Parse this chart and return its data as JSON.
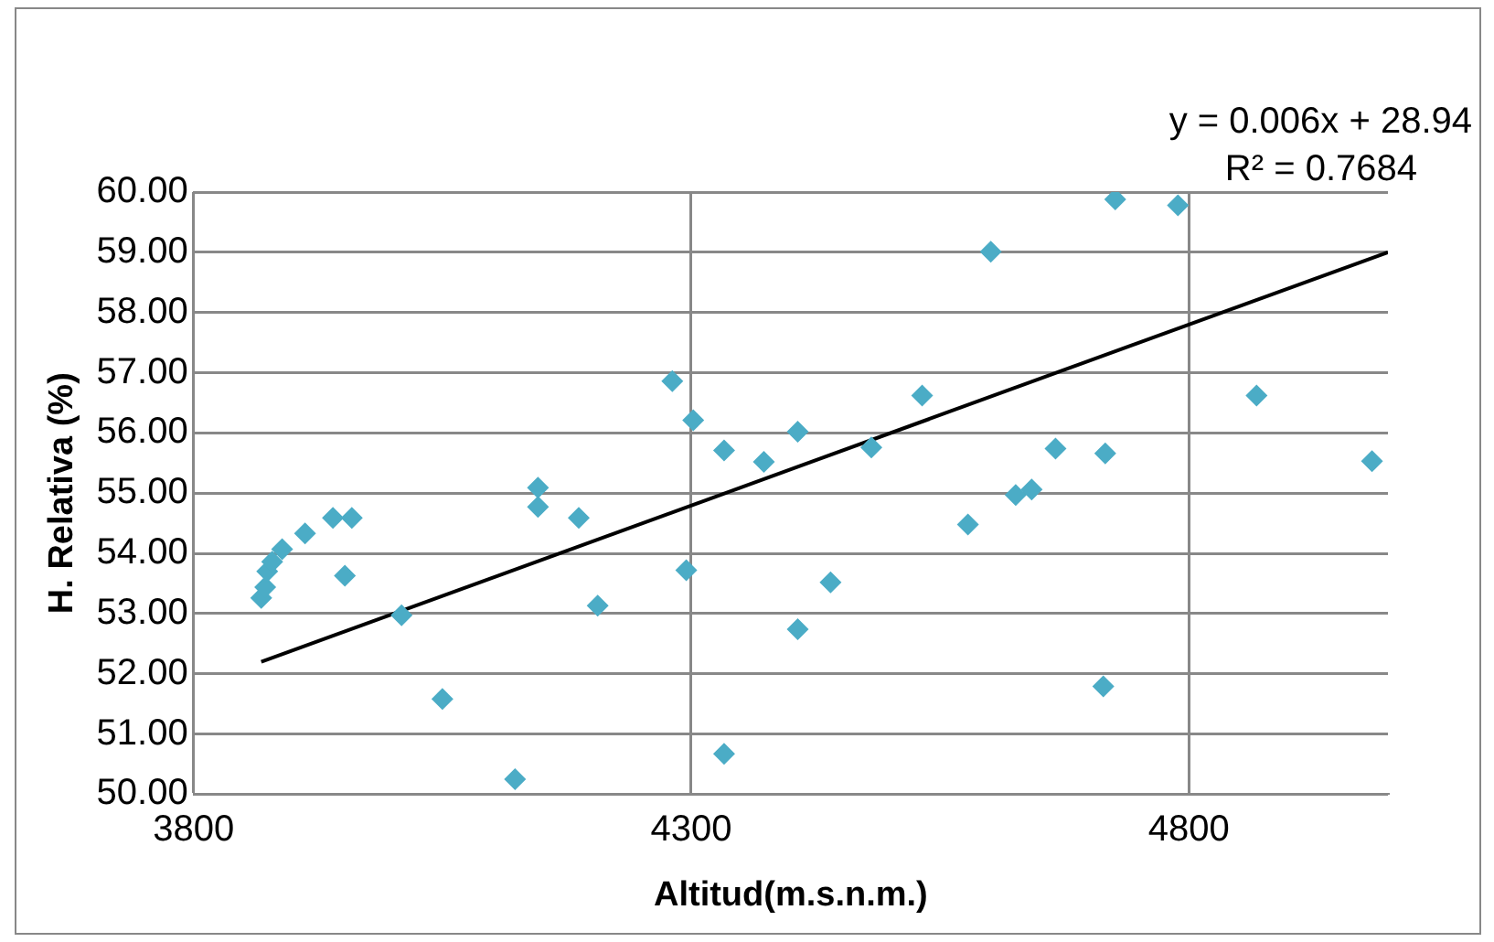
{
  "chart_data": {
    "type": "scatter",
    "xlabel": "Altitud(m.s.n.m.)",
    "ylabel": "H. Relativa (%)",
    "xlim": [
      3800,
      5000
    ],
    "xticks": [
      3800,
      4300,
      4800
    ],
    "ylim": [
      50,
      60
    ],
    "yticks": [
      {
        "value": 50,
        "label": "50.00"
      },
      {
        "value": 51,
        "label": "51.00"
      },
      {
        "value": 52,
        "label": "52.00"
      },
      {
        "value": 53,
        "label": "53.00"
      },
      {
        "value": 54,
        "label": "54.00"
      },
      {
        "value": 55,
        "label": "55.00"
      },
      {
        "value": 56,
        "label": "56.00"
      },
      {
        "value": 57,
        "label": "57.00"
      },
      {
        "value": 58,
        "label": "58.00"
      },
      {
        "value": 59,
        "label": "59.00"
      },
      {
        "value": 60,
        "label": "60.00"
      }
    ],
    "grid": true,
    "legend": false,
    "marker": "diamond",
    "annotations": [
      "y = 0.006x + 28.94",
      "R² = 0.7684"
    ],
    "series": [
      {
        "type": "scatter",
        "color": "#4bacc6",
        "x": [
          3868,
          3872,
          3874,
          3879,
          3889,
          3912,
          3940,
          3959,
          3952,
          4009,
          4050,
          4123,
          4146,
          4146,
          4187,
          4206,
          4281,
          4302,
          4295,
          4333,
          4333,
          4373,
          4407,
          4407,
          4481,
          4440,
          4532,
          4578,
          4601,
          4626,
          4642,
          4666,
          4716,
          4714,
          4726,
          4789,
          4868,
          4984
        ],
        "values": [
          53.26,
          53.44,
          53.7,
          53.86,
          54.07,
          54.33,
          54.59,
          54.59,
          53.63,
          52.97,
          51.58,
          50.25,
          55.09,
          54.77,
          54.59,
          53.13,
          56.86,
          56.21,
          53.72,
          55.71,
          50.67,
          55.52,
          56.02,
          52.74,
          55.76,
          53.52,
          56.62,
          54.48,
          59.01,
          54.97,
          55.06,
          55.74,
          55.66,
          51.79,
          59.88,
          59.78,
          56.62,
          55.53
        ]
      },
      {
        "type": "line",
        "color": "#000000",
        "x": [
          3868,
          5000
        ],
        "values": [
          52.2,
          59.0
        ],
        "marker": "none"
      }
    ]
  }
}
